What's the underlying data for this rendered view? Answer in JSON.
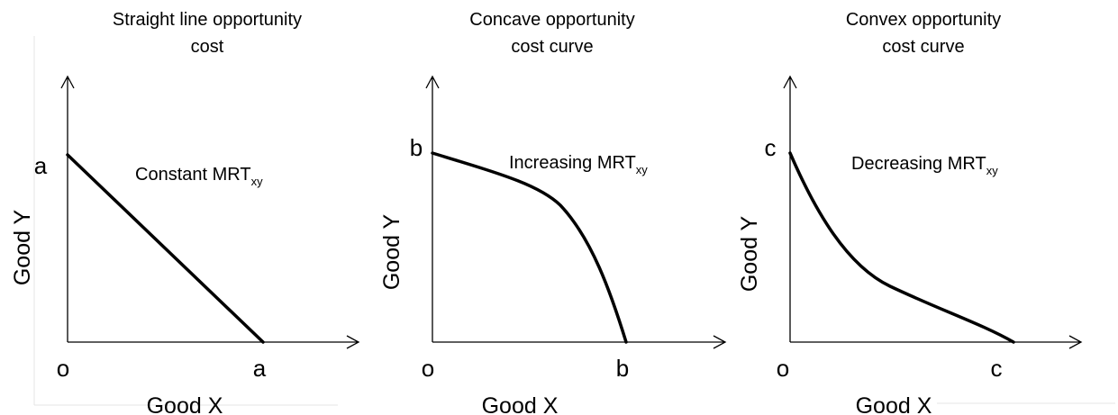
{
  "panels": [
    {
      "title": [
        "Straight  line opportunity",
        "cost"
      ],
      "annotation": {
        "text": "Constant MRT",
        "subscript": "xy"
      },
      "y_label": "Good  Y",
      "x_label": "Good  X",
      "origin": "o",
      "y_intercept": "a",
      "x_intercept": "a"
    },
    {
      "title": [
        "Concave opportunity",
        "cost curve"
      ],
      "annotation": {
        "text": "Increasing MRT",
        "subscript": "xy"
      },
      "y_label": "Good  Y",
      "x_label": "Good X",
      "origin": "o",
      "y_intercept": "b",
      "x_intercept": "b"
    },
    {
      "title": [
        "Convex opportunity",
        "cost curve"
      ],
      "annotation": {
        "text": "Decreasing MRT",
        "subscript": "xy"
      },
      "y_label": "Good Y",
      "x_label": "Good X",
      "origin": "o",
      "y_intercept": "c",
      "x_intercept": "c"
    }
  ]
}
